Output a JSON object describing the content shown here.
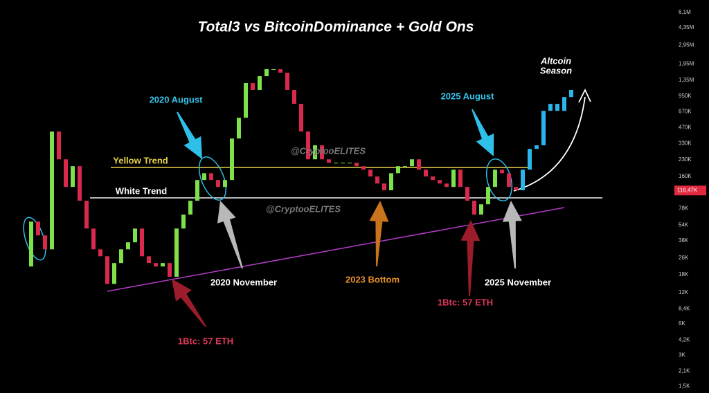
{
  "chart_data": {
    "type": "candlestick",
    "title": "Total3 vs BitcoinDominance + Gold Ons",
    "yscale": "log",
    "ylim": [
      1290,
      8050000
    ],
    "yticks": [
      {
        "value": 6100000,
        "label": "6,1M"
      },
      {
        "value": 4350000,
        "label": "4,35M"
      },
      {
        "value": 2950000,
        "label": "2,95M"
      },
      {
        "value": 1950000,
        "label": "1,95M"
      },
      {
        "value": 1350000,
        "label": "1,35M"
      },
      {
        "value": 950000,
        "label": "950K"
      },
      {
        "value": 670000,
        "label": "670K"
      },
      {
        "value": 470000,
        "label": "470K"
      },
      {
        "value": 330000,
        "label": "330K"
      },
      {
        "value": 230000,
        "label": "230K"
      },
      {
        "value": 160000,
        "label": "160K"
      },
      {
        "value": 78000,
        "label": "78K"
      },
      {
        "value": 54000,
        "label": "54K"
      },
      {
        "value": 38000,
        "label": "38K"
      },
      {
        "value": 26000,
        "label": "26K"
      },
      {
        "value": 18000,
        "label": "18K"
      },
      {
        "value": 12000,
        "label": "12K"
      },
      {
        "value": 8400,
        "label": "8,4K"
      },
      {
        "value": 6000,
        "label": "6K"
      },
      {
        "value": 4200,
        "label": "4,2K"
      },
      {
        "value": 3000,
        "label": "3K"
      },
      {
        "value": 2100,
        "label": "2,1K"
      },
      {
        "value": 1500,
        "label": "1,5K"
      }
    ],
    "last_price": {
      "value": 116470,
      "label": "116,47K",
      "color": "#e0293f"
    },
    "up_color": "#7ee04a",
    "down_color": "#d9294c",
    "values": [
      21500,
      58300,
      42900,
      31500,
      432000,
      233000,
      126000,
      200000,
      92700,
      50000,
      31500,
      27000,
      14600,
      23200,
      31500,
      36800,
      50000,
      27000,
      23200,
      21500,
      23200,
      17100,
      50000,
      68100,
      92700,
      147000,
      171000,
      147000,
      126000,
      147000,
      370000,
      587000,
      1270000,
      1090000,
      1480000,
      1730000,
      1730000,
      1600000,
      1090000,
      800000,
      432000,
      233000,
      318000,
      233000,
      216000,
      216000,
      216000,
      216000,
      200000,
      185000,
      159000,
      136000,
      117000,
      171000,
      200000,
      200000,
      233000,
      185000,
      159000,
      147000,
      136000,
      126000,
      185000,
      126000,
      92700,
      68100,
      85700,
      126000,
      185000,
      171000,
      126000,
      117000
    ],
    "projection": {
      "color": "#2bb5ea",
      "values": [
        185000,
        294000,
        318000,
        685000,
        800000,
        685000,
        932000,
        1090000
      ]
    },
    "annotations": [
      "2020 August",
      "2025 August",
      "Yellow Trend",
      "White Trend",
      "@CryptooELITES",
      "@CryptooELITES",
      "2020 November",
      "2023 Bottom",
      "2025 November",
      "1Btc: 57 ETH",
      "1Btc: 57 ETH",
      "Altcoin",
      "Season"
    ]
  }
}
